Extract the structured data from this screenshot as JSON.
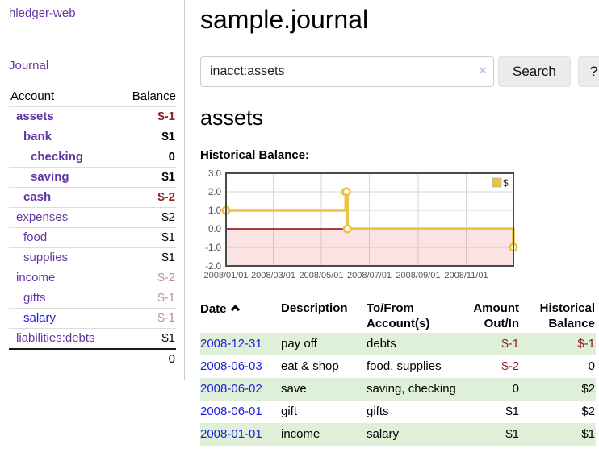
{
  "colors": {
    "purple_link": "#6535a5",
    "blue_link": "#1d1de0",
    "negative_strong": "#8f1d1d",
    "negative_muted": "#bc8f8f",
    "row_highlight_green": "#dff0d8",
    "chart_line_gold": "#edc240",
    "chart_negative_fill": "rgba(238,90,90,0.17)",
    "chart_zero_line": "#8b0000",
    "chart_border": "#4a4a4a",
    "chart_grid": "#d6d6d6"
  },
  "sidebar": {
    "brand": "hledger-web",
    "journal_link": "Journal",
    "accounts": {
      "col_account": "Account",
      "col_balance": "Balance",
      "rows": [
        {
          "name": "assets",
          "depth": 1,
          "bold": true,
          "balance": "$-1",
          "balance_class": "neg-strong",
          "link_class": ""
        },
        {
          "name": "bank",
          "depth": 2,
          "bold": true,
          "balance": "$1",
          "balance_class": "",
          "link_class": ""
        },
        {
          "name": "checking",
          "depth": 3,
          "bold": true,
          "balance": "0",
          "balance_class": "",
          "link_class": ""
        },
        {
          "name": "saving",
          "depth": 3,
          "bold": true,
          "balance": "$1",
          "balance_class": "",
          "link_class": ""
        },
        {
          "name": "cash",
          "depth": 2,
          "bold": true,
          "balance": "$-2",
          "balance_class": "neg-strong",
          "link_class": ""
        },
        {
          "name": "expenses",
          "depth": 1,
          "bold": false,
          "balance": "$2",
          "balance_class": "",
          "link_class": ""
        },
        {
          "name": "food",
          "depth": 2,
          "bold": false,
          "balance": "$1",
          "balance_class": "",
          "link_class": ""
        },
        {
          "name": "supplies",
          "depth": 2,
          "bold": false,
          "balance": "$1",
          "balance_class": "",
          "link_class": ""
        },
        {
          "name": "income",
          "depth": 1,
          "bold": false,
          "balance": "$-2",
          "balance_class": "neg-muted",
          "link_class": ""
        },
        {
          "name": "gifts",
          "depth": 2,
          "bold": false,
          "balance": "$-1",
          "balance_class": "neg-muted",
          "link_class": ""
        },
        {
          "name": "salary",
          "depth": 2,
          "bold": false,
          "balance": "$-1",
          "balance_class": "neg-muted",
          "link_class": "blue"
        },
        {
          "name": "liabilities:debts",
          "depth": 1,
          "bold": false,
          "balance": "$1",
          "balance_class": "",
          "link_class": ""
        }
      ],
      "total": "0"
    }
  },
  "main": {
    "title": "sample.journal",
    "search": {
      "value": "inacct:assets",
      "clear_label": "×",
      "button_label": "Search",
      "help_label": "?"
    },
    "account_heading": "assets",
    "chart_label": "Historical Balance:"
  },
  "chart_data": {
    "type": "line",
    "step": true,
    "title": "Historical Balance",
    "series": [
      {
        "name": "$",
        "points": [
          [
            "2008-01-01",
            1
          ],
          [
            "2008-06-01",
            2
          ],
          [
            "2008-06-02",
            2
          ],
          [
            "2008-06-03",
            0
          ],
          [
            "2008-12-31",
            -1
          ]
        ]
      }
    ],
    "x_range": [
      "2008-01-01",
      "2008-12-31"
    ],
    "x_ticks": [
      "2008/01/01",
      "2008/03/01",
      "2008/05/01",
      "2008/07/01",
      "2008/09/01",
      "2008/11/01"
    ],
    "y_range": [
      -2,
      3
    ],
    "y_ticks": [
      3.0,
      2.0,
      1.0,
      0.0,
      -1.0,
      -2.0
    ],
    "grid": true,
    "negative_region_shaded": true,
    "legend_position": "top-right",
    "legend": [
      {
        "label": "$",
        "color": "#edc240"
      }
    ]
  },
  "register": {
    "headers": {
      "date": "Date",
      "description": "Description",
      "accounts": "To/From Account(s)",
      "amount": "Amount Out/In",
      "balance": "Historical Balance"
    },
    "rows": [
      {
        "date": "2008-12-31",
        "description": "pay off",
        "accounts": "debts",
        "amount": "$-1",
        "amount_class": "neg-strong",
        "balance": "$-1",
        "balance_class": "neg-strong"
      },
      {
        "date": "2008-06-03",
        "description": "eat & shop",
        "accounts": "food, supplies",
        "amount": "$-2",
        "amount_class": "neg-strong",
        "balance": "0",
        "balance_class": ""
      },
      {
        "date": "2008-06-02",
        "description": "save",
        "accounts": "saving, checking",
        "amount": "0",
        "amount_class": "",
        "balance": "$2",
        "balance_class": ""
      },
      {
        "date": "2008-06-01",
        "description": "gift",
        "accounts": "gifts",
        "amount": "$1",
        "amount_class": "",
        "balance": "$2",
        "balance_class": ""
      },
      {
        "date": "2008-01-01",
        "description": "income",
        "accounts": "salary",
        "amount": "$1",
        "amount_class": "",
        "balance": "$1",
        "balance_class": ""
      }
    ]
  }
}
